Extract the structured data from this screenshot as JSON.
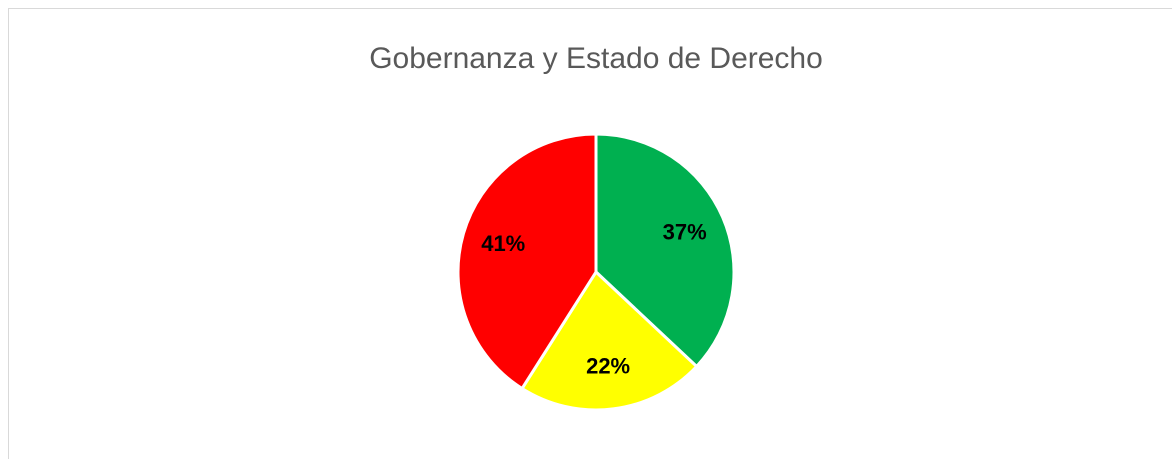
{
  "chart_data": {
    "type": "pie",
    "title": "Gobernanza y Estado de Derecho",
    "values": [
      37,
      22,
      41
    ],
    "value_labels": [
      "37%",
      "22%",
      "41%"
    ],
    "colors": [
      "#00b050",
      "#ffff00",
      "#ff0000"
    ]
  }
}
